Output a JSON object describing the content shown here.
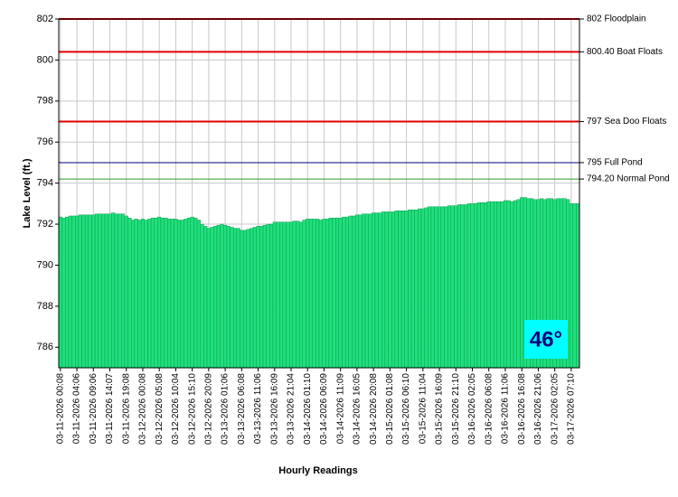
{
  "chart_data": {
    "type": "bar",
    "y_label": "Lake Level (ft.)",
    "x_label": "Hourly Readings",
    "badge": "46°",
    "color": "#1fe07c",
    "ylim": [
      785,
      802
    ],
    "yticks": [
      786,
      788,
      790,
      792,
      794,
      796,
      798,
      800,
      802
    ],
    "grid": true,
    "reference_lines": [
      {
        "value": 802,
        "label": "802 Floodplain",
        "color": "#e00000"
      },
      {
        "value": 800.4,
        "label": "800.40 Boat Floats",
        "color": "#e00000"
      },
      {
        "value": 797,
        "label": "797 Sea Doo Floats",
        "color": "#e00000"
      },
      {
        "value": 795,
        "label": "795 Full Pond",
        "color": "#000080"
      },
      {
        "value": 794.2,
        "label": "794.20 Normal Pond",
        "color": "#2e9e2e"
      }
    ],
    "categories": [
      "03-11-2026 00:08",
      null,
      null,
      null,
      null,
      "03-11-2026 04:06",
      null,
      null,
      null,
      null,
      "03-11-2026 09:06",
      null,
      null,
      null,
      null,
      "03-11-2026 14:07",
      null,
      null,
      null,
      null,
      "03-11-2026 19:08",
      null,
      null,
      null,
      null,
      "03-12-2026 00:08",
      null,
      null,
      null,
      null,
      "03-12-2026 05:08",
      null,
      null,
      null,
      null,
      "03-12-2026 10:04",
      null,
      null,
      null,
      null,
      "03-12-2026 15:10",
      null,
      null,
      null,
      null,
      "03-12-2026 20:09",
      null,
      null,
      null,
      null,
      "03-13-2026 01:06",
      null,
      null,
      null,
      null,
      "03-13-2026 06:08",
      null,
      null,
      null,
      null,
      "03-13-2026 11:06",
      null,
      null,
      null,
      null,
      "03-13-2026 16:09",
      null,
      null,
      null,
      null,
      "03-13-2026 21:04",
      null,
      null,
      null,
      null,
      "03-14-2026 01:10",
      null,
      null,
      null,
      null,
      "03-14-2026 06:09",
      null,
      null,
      null,
      null,
      "03-14-2026 11:09",
      null,
      null,
      null,
      null,
      "03-14-2026 16:05",
      null,
      null,
      null,
      null,
      "03-14-2026 20:08",
      null,
      null,
      null,
      null,
      "03-15-2026 01:08",
      null,
      null,
      null,
      null,
      "03-15-2026 06:10",
      null,
      null,
      null,
      null,
      "03-15-2026 11:04",
      null,
      null,
      null,
      null,
      "03-15-2026 16:09",
      null,
      null,
      null,
      null,
      "03-15-2026 21:10",
      null,
      null,
      null,
      null,
      "03-16-2026 02:05",
      null,
      null,
      null,
      null,
      "03-16-2026 06:08",
      null,
      null,
      null,
      null,
      "03-16-2026 11:06",
      null,
      null,
      null,
      null,
      "03-16-2026 16:08",
      null,
      null,
      null,
      null,
      "03-16-2026 21:06",
      null,
      null,
      null,
      null,
      "03-17-2026 02:05",
      null,
      null,
      null,
      null,
      "03-17-2026 07:10",
      null,
      null
    ],
    "values": [
      792.35,
      792.3,
      792.35,
      792.4,
      792.4,
      792.4,
      792.45,
      792.45,
      792.45,
      792.45,
      792.45,
      792.5,
      792.5,
      792.5,
      792.5,
      792.5,
      792.55,
      792.5,
      792.5,
      792.5,
      792.4,
      792.3,
      792.2,
      792.25,
      792.2,
      792.25,
      792.2,
      792.25,
      792.3,
      792.3,
      792.35,
      792.3,
      792.3,
      792.25,
      792.25,
      792.25,
      792.2,
      792.2,
      792.25,
      792.3,
      792.35,
      792.3,
      792.2,
      792.0,
      791.9,
      791.8,
      791.85,
      791.9,
      791.95,
      792.0,
      791.95,
      791.9,
      791.85,
      791.8,
      791.8,
      791.7,
      791.7,
      791.75,
      791.8,
      791.85,
      791.9,
      791.9,
      791.95,
      792.0,
      792.0,
      792.1,
      792.1,
      792.1,
      792.1,
      792.1,
      792.1,
      792.15,
      792.15,
      792.1,
      792.2,
      792.25,
      792.25,
      792.25,
      792.25,
      792.2,
      792.25,
      792.25,
      792.3,
      792.3,
      792.3,
      792.3,
      792.35,
      792.35,
      792.4,
      792.4,
      792.45,
      792.45,
      792.5,
      792.5,
      792.5,
      792.55,
      792.55,
      792.55,
      792.6,
      792.6,
      792.6,
      792.6,
      792.65,
      792.65,
      792.65,
      792.65,
      792.7,
      792.7,
      792.7,
      792.75,
      792.75,
      792.8,
      792.85,
      792.85,
      792.85,
      792.85,
      792.85,
      792.85,
      792.9,
      792.9,
      792.9,
      792.95,
      792.95,
      792.95,
      793.0,
      793.0,
      793.0,
      793.05,
      793.05,
      793.05,
      793.1,
      793.1,
      793.1,
      793.1,
      793.1,
      793.15,
      793.15,
      793.1,
      793.15,
      793.2,
      793.3,
      793.3,
      793.25,
      793.25,
      793.2,
      793.2,
      793.25,
      793.2,
      793.25,
      793.25,
      793.2,
      793.25,
      793.25,
      793.25,
      793.2,
      793.0,
      793.0,
      793.0
    ]
  }
}
